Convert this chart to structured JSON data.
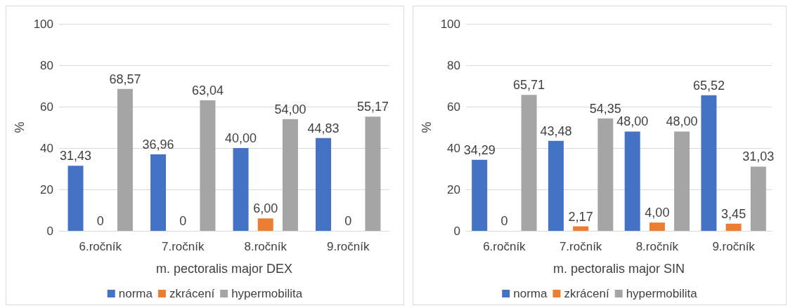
{
  "chart_data": [
    {
      "type": "bar",
      "xlabel": "m. pectoralis major DEX",
      "ylabel": "%",
      "categories": [
        "6.ročník",
        "7.ročník",
        "8.ročník",
        "9.ročník"
      ],
      "ylim": [
        0,
        100
      ],
      "yticks": [
        0,
        20,
        40,
        60,
        80,
        100
      ],
      "grid": "y",
      "legend": "bottom",
      "series": [
        {
          "name": "norma",
          "color": "#4472c4",
          "values": [
            31.43,
            36.96,
            40,
            44.83
          ],
          "value_labels": [
            "31,43",
            "36,96",
            "40,00",
            "44,83"
          ]
        },
        {
          "name": "zkrácení",
          "color": "#ed7d31",
          "values": [
            0,
            0,
            6,
            0
          ],
          "value_labels": [
            "0",
            "0",
            "6,00",
            "0"
          ]
        },
        {
          "name": "hypermobilita",
          "color": "#a5a5a5",
          "values": [
            68.57,
            63.04,
            54,
            55.17
          ],
          "value_labels": [
            "68,57",
            "63,04",
            "54,00",
            "55,17"
          ]
        }
      ]
    },
    {
      "type": "bar",
      "xlabel": "m. pectoralis major SIN",
      "ylabel": "%",
      "categories": [
        "6.ročník",
        "7.ročník",
        "8.ročník",
        "9.ročník"
      ],
      "ylim": [
        0,
        100
      ],
      "yticks": [
        0,
        20,
        40,
        60,
        80,
        100
      ],
      "grid": "y",
      "legend": "bottom",
      "series": [
        {
          "name": "norma",
          "color": "#4472c4",
          "values": [
            34.29,
            43.48,
            48,
            65.52
          ],
          "value_labels": [
            "34,29",
            "43,48",
            "48,00",
            "65,52"
          ]
        },
        {
          "name": "zkrácení",
          "color": "#ed7d31",
          "values": [
            0,
            2.17,
            4,
            3.45
          ],
          "value_labels": [
            "0",
            "2,17",
            "4,00",
            "3,45"
          ]
        },
        {
          "name": "hypermobilita",
          "color": "#a5a5a5",
          "values": [
            65.71,
            54.35,
            48,
            31.03
          ],
          "value_labels": [
            "65,71",
            "54,35",
            "48,00",
            "31,03"
          ]
        }
      ]
    }
  ]
}
